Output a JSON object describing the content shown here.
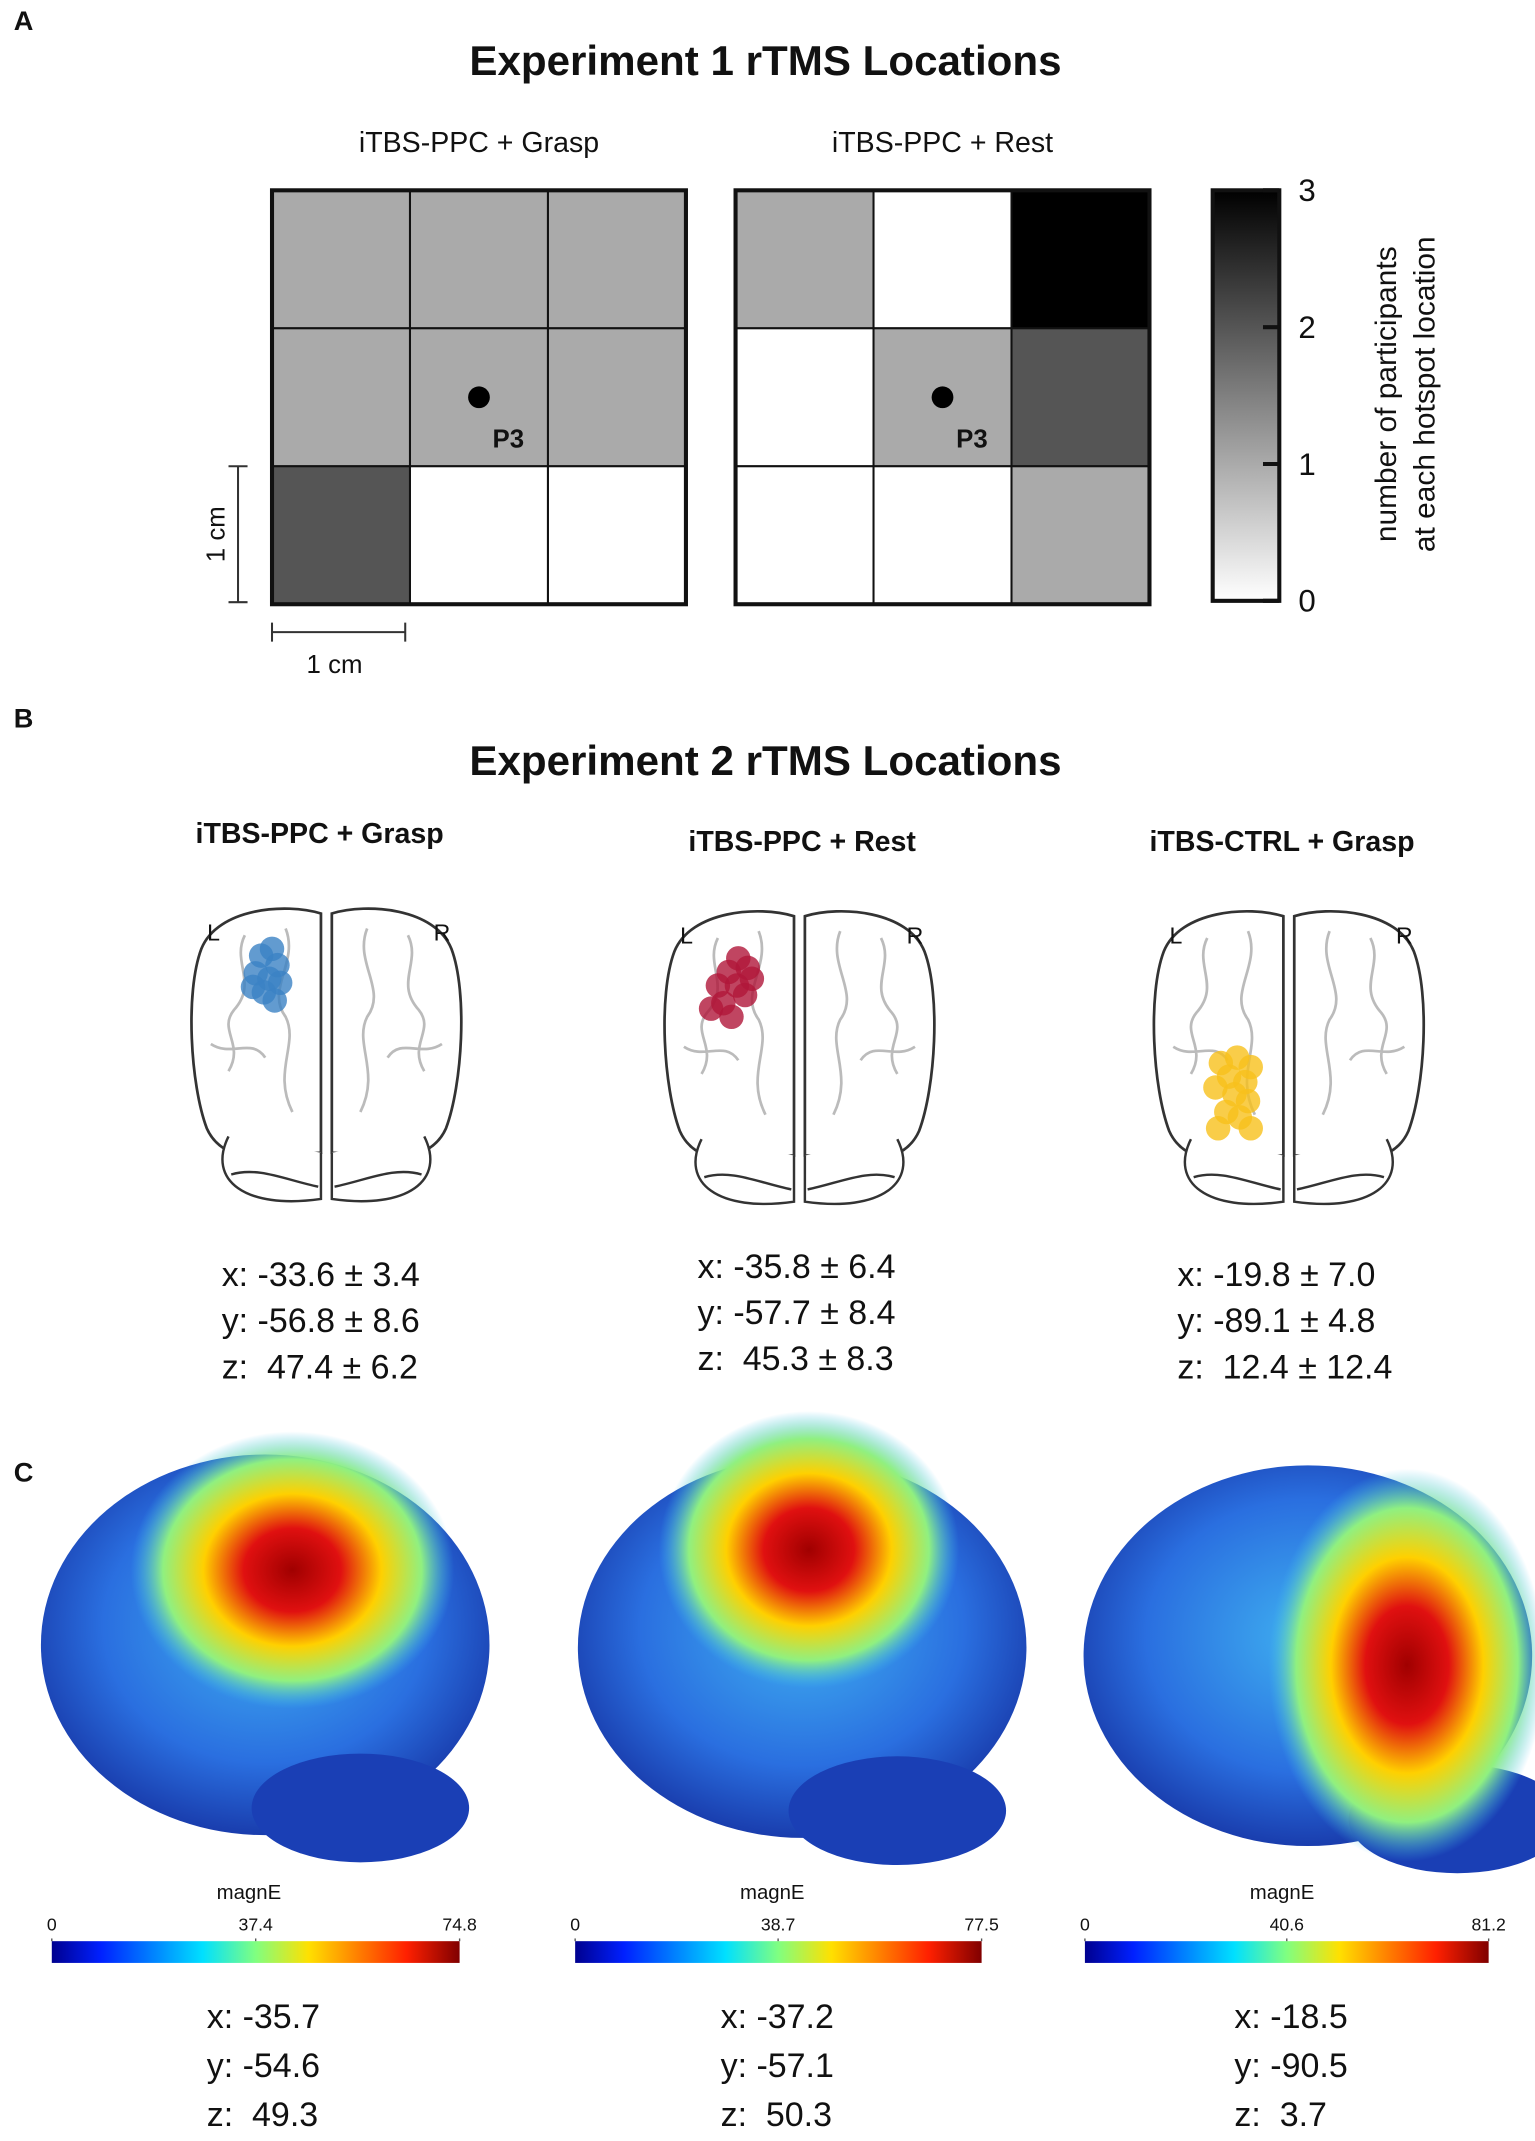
{
  "panel_labels": [
    "A",
    "B",
    "C"
  ],
  "panel_a": {
    "title": "Experiment 1 rTMS Locations",
    "maps": [
      {
        "title": "iTBS-PPC + Grasp",
        "values": [
          [
            1,
            1,
            1
          ],
          [
            1,
            1,
            1
          ],
          [
            2,
            0,
            0
          ]
        ],
        "marker": "P3"
      },
      {
        "title": "iTBS-PPC + Rest",
        "values": [
          [
            1,
            0,
            3
          ],
          [
            0,
            1,
            2
          ],
          [
            0,
            0,
            1
          ]
        ],
        "marker": "P3"
      }
    ],
    "scale_x": "1 cm",
    "scale_y": "1 cm",
    "colorbar": {
      "label_lines": [
        "number of participants",
        "at each hotspot location"
      ],
      "lim": [
        0,
        3
      ],
      "ticks": [
        0,
        1,
        2,
        3
      ]
    }
  },
  "panel_b": {
    "title": "Experiment 2 rTMS Locations",
    "groups": [
      {
        "title": "iTBS-PPC + Grasp",
        "left": "L",
        "right": "R",
        "coords": [
          "x: -33.6 ± 3.4",
          "y: -56.8 ± 8.6",
          "z:  47.4 ± 6.2"
        ]
      },
      {
        "title": "iTBS-PPC + Rest",
        "left": "L",
        "right": "R",
        "coords": [
          "x: -35.8 ± 6.4",
          "y: -57.7 ± 8.4",
          "z:  45.3 ± 8.3"
        ]
      },
      {
        "title": "iTBS-CTRL + Grasp",
        "left": "L",
        "right": "R",
        "coords": [
          "x: -19.8 ± 7.0",
          "y: -89.1 ± 4.8",
          "z:  12.4 ± 12.4"
        ]
      }
    ]
  },
  "panel_c": {
    "models": [
      {
        "colorbar_label": "magnE",
        "lim": [
          0,
          74.8
        ],
        "ticks": [
          0,
          37.4,
          74.8
        ],
        "coords": [
          "x: -35.7",
          "y: -54.6",
          "z:  49.3"
        ]
      },
      {
        "colorbar_label": "magnE",
        "lim": [
          0,
          77.5
        ],
        "ticks": [
          0,
          38.7,
          77.5
        ],
        "coords": [
          "x: -37.2",
          "y: -57.1",
          "z:  50.3"
        ]
      },
      {
        "colorbar_label": "magnE",
        "lim": [
          0,
          81.2
        ],
        "ticks": [
          0,
          40.6,
          81.2
        ],
        "coords": [
          "x: -18.5",
          "y: -90.5",
          "z:  3.7"
        ]
      }
    ]
  }
}
